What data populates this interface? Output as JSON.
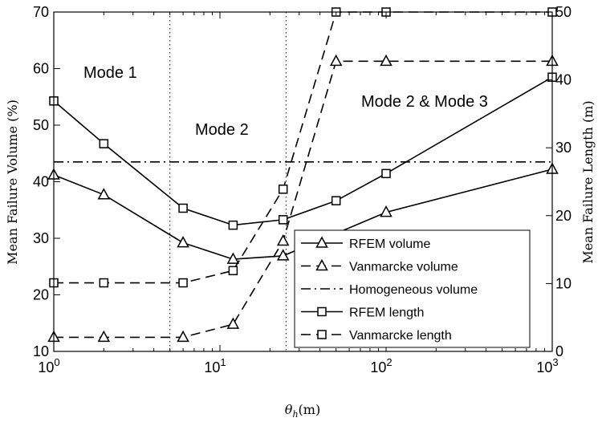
{
  "chart_data": {
    "type": "line",
    "xlabel": "θh(m)",
    "ylabel_left": "Mean Failure Volume (%)",
    "ylabel_right": "Mean Failure Length (m)",
    "x_scale": "log",
    "xlim": [
      1,
      1000
    ],
    "ylim_left": [
      10,
      70
    ],
    "ylim_right": [
      0,
      50
    ],
    "x_ticks": [
      {
        "value": 1,
        "base": "10",
        "exp": "0"
      },
      {
        "value": 10,
        "base": "10",
        "exp": "1"
      },
      {
        "value": 100,
        "base": "10",
        "exp": "2"
      },
      {
        "value": 1000,
        "base": "10",
        "exp": "3"
      }
    ],
    "y_ticks_left": [
      "10",
      "20",
      "30",
      "40",
      "50",
      "60",
      "70"
    ],
    "y_ticks_right": [
      "0",
      "10",
      "20",
      "30",
      "40",
      "50"
    ],
    "grid": false,
    "vertical_lines_x": [
      5,
      25
    ],
    "annotations": [
      {
        "text": "Mode 1"
      },
      {
        "text": "Mode 2"
      },
      {
        "text": "Mode 2 & Mode 3"
      }
    ],
    "legend_position": "bottom-right",
    "series": [
      {
        "name": "RFEM volume",
        "axis": "left",
        "marker": "triangle",
        "dash": "solid",
        "x": [
          1,
          2,
          6,
          12,
          24,
          100,
          1000
        ],
        "y": [
          41.2,
          37.7,
          29.2,
          26.3,
          26.9,
          34.6,
          42.2
        ]
      },
      {
        "name": "Vanmarcke volume",
        "axis": "left",
        "marker": "triangle",
        "dash": "dashed",
        "x": [
          1,
          2,
          6,
          12,
          24,
          50,
          100,
          1000
        ],
        "y": [
          12.5,
          12.5,
          12.5,
          14.8,
          29.5,
          61.3,
          61.3,
          61.3
        ]
      },
      {
        "name": "Homogeneous volume",
        "axis": "left",
        "marker": "none",
        "dash": "dashdot",
        "x": [
          1,
          1000
        ],
        "y": [
          43.5,
          43.5
        ]
      },
      {
        "name": "RFEM length",
        "axis": "right",
        "marker": "square",
        "dash": "solid",
        "x": [
          1,
          2,
          6,
          12,
          24,
          50,
          100,
          1000
        ],
        "y": [
          36.9,
          30.6,
          21.1,
          18.6,
          19.4,
          22.2,
          26.2,
          40.4
        ]
      },
      {
        "name": "Vanmarcke length",
        "axis": "right",
        "marker": "square",
        "dash": "dashed",
        "x": [
          1,
          2,
          6,
          12,
          24,
          50,
          100,
          1000
        ],
        "y": [
          10.1,
          10.1,
          10.1,
          11.9,
          23.9,
          50,
          50,
          50
        ]
      }
    ]
  }
}
